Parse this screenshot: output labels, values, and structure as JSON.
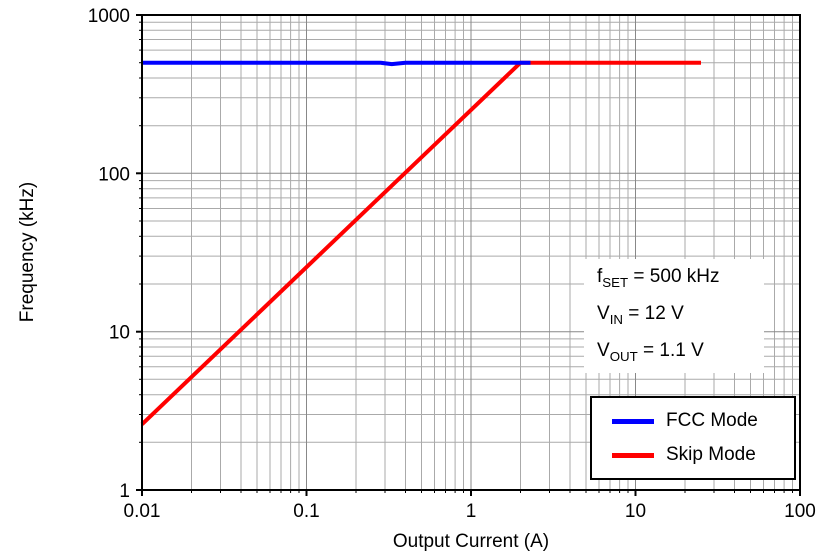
{
  "chart_data": {
    "type": "line",
    "title": "",
    "xlabel": "Output Current (A)",
    "ylabel": "Frequency (kHz)",
    "xscale": "log",
    "yscale": "log",
    "xlim": [
      0.01,
      100
    ],
    "ylim": [
      1,
      1000
    ],
    "x_ticks": [
      0.01,
      0.1,
      1,
      10,
      100
    ],
    "x_tick_labels": [
      "0.01",
      "0.1",
      "1",
      "10",
      "100"
    ],
    "y_ticks": [
      1,
      10,
      100,
      1000
    ],
    "y_tick_labels": [
      "1",
      "10",
      "100",
      "1000"
    ],
    "grid": true,
    "legend_position": "lower right",
    "series": [
      {
        "name": "FCC Mode",
        "color": "#0000ff",
        "width": 4,
        "x": [
          0.01,
          0.28,
          0.33,
          0.4,
          2.3
        ],
        "y": [
          500,
          500,
          490,
          500,
          500
        ]
      },
      {
        "name": "Skip Mode",
        "color": "#ff0000",
        "width": 4,
        "x": [
          0.01,
          2,
          25
        ],
        "y": [
          2.6,
          500,
          500
        ]
      }
    ],
    "annotations": [
      "f_SET = 500 kHz",
      "V_IN = 12 V",
      "V_OUT = 1.1 V"
    ]
  },
  "annotation": {
    "lines": [
      {
        "pre": "f",
        "sub": "SET",
        "post": " = 500 kHz"
      },
      {
        "pre": "V",
        "sub": "IN",
        "post": " = 12 V"
      },
      {
        "pre": "V",
        "sub": "OUT",
        "post": " = 1.1 V"
      }
    ]
  }
}
